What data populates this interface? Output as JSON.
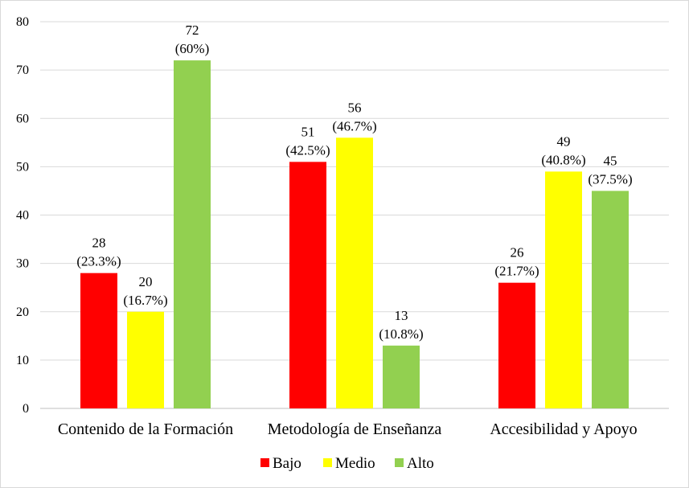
{
  "chart_data": {
    "type": "bar",
    "categories": [
      "Contenido de la Formación",
      "Metodología de Enseñanza",
      "Accesibilidad y Apoyo"
    ],
    "series": [
      {
        "name": "Bajo",
        "color": "#ff0000",
        "values": [
          28,
          51,
          26
        ],
        "labels": [
          "(23.3%)",
          "(42.5%)",
          "(21.7%)"
        ]
      },
      {
        "name": "Medio",
        "color": "#ffff00",
        "values": [
          20,
          56,
          49
        ],
        "labels": [
          "(16.7%)",
          "(46.7%)",
          "(40.8%)"
        ]
      },
      {
        "name": "Alto",
        "color": "#92d050",
        "values": [
          72,
          13,
          45
        ],
        "labels": [
          "(60%)",
          "(10.8%)",
          "(37.5%)"
        ]
      }
    ],
    "ylim": [
      0,
      80
    ],
    "yticks": [
      0,
      10,
      20,
      30,
      40,
      50,
      60,
      70,
      80
    ],
    "grid": true,
    "legend": "bottom-center"
  }
}
